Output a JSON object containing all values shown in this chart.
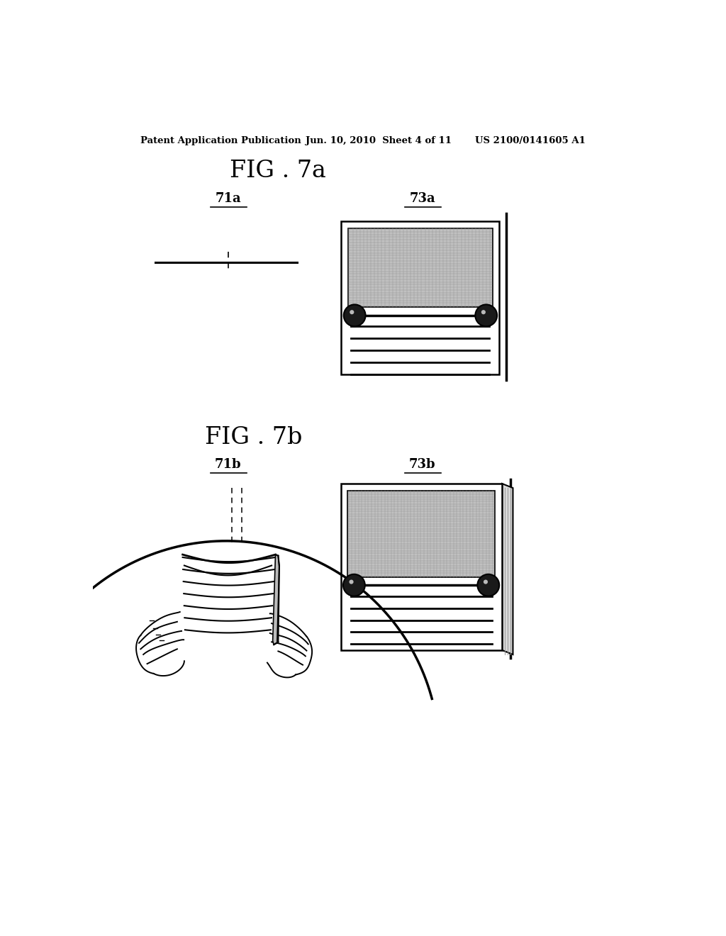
{
  "bg_color": "#ffffff",
  "header_left": "Patent Application Publication",
  "header_mid": "Jun. 10, 2010  Sheet 4 of 11",
  "header_right": "US 2100/0141605 A1",
  "fig7a_title": "FIG . 7a",
  "fig7b_title": "FIG . 7b",
  "label_71a": "71a",
  "label_73a": "73a",
  "label_71b": "71b",
  "label_73b": "73b",
  "screen_color": "#c0c0c0",
  "device_edge": "#000000",
  "roller_color": "#1a1a1a",
  "side_panel_color": "#d8d8d8"
}
